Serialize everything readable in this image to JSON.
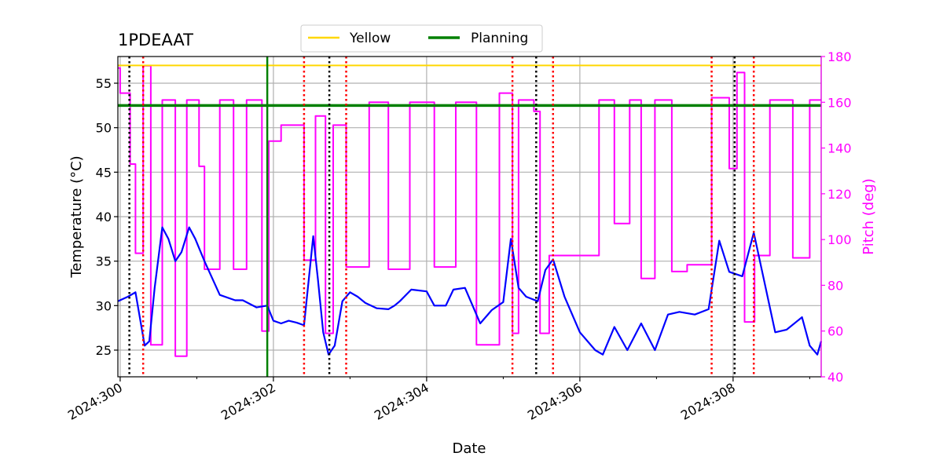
{
  "chart_data": {
    "type": "line",
    "title": "1PDEAAT",
    "xlabel": "Date",
    "ylabel": "Temperature ($^\\circ$C)",
    "ylabel_display": "Temperature (°C)",
    "y2label": "Pitch (deg)",
    "xlim": [
      299.97,
      309.15
    ],
    "ylim": [
      22,
      58
    ],
    "y2lim": [
      40,
      180
    ],
    "x_ticks": [
      {
        "value": 300,
        "label": "2024:300"
      },
      {
        "value": 302,
        "label": "2024:302"
      },
      {
        "value": 304,
        "label": "2024:304"
      },
      {
        "value": 306,
        "label": "2024:306"
      },
      {
        "value": 308,
        "label": "2024:308"
      }
    ],
    "x_minor_ticks": [
      301,
      303,
      305,
      307,
      309
    ],
    "y_ticks": [
      25,
      30,
      35,
      40,
      45,
      50,
      55
    ],
    "y2_ticks": [
      40,
      60,
      80,
      100,
      120,
      140,
      160,
      180
    ],
    "grid": true,
    "legend_position": "top-center",
    "colors": {
      "temperature": "#0000ff",
      "pitch": "#ff00ff",
      "yellow": "#ffd700",
      "planning": "#008000",
      "red_marker": "#ff0000",
      "black_marker": "#000000",
      "grid": "#b0b0b0"
    },
    "legend": [
      {
        "label": "Yellow",
        "color": "#ffd700"
      },
      {
        "label": "Planning",
        "color": "#008000"
      }
    ],
    "hlines": [
      {
        "name": "Yellow",
        "value": 57
      },
      {
        "name": "Planning",
        "value": 52.5
      }
    ],
    "vline_planning": 301.92,
    "red_dotted_lines": [
      300.3,
      302.4,
      302.95,
      305.12,
      305.65,
      307.72,
      308.27
    ],
    "black_dotted_lines": [
      300.12,
      302.73,
      305.43,
      308.02
    ],
    "series": [
      {
        "name": "Temperature",
        "axis": "left",
        "x": [
          299.97,
          300.1,
          300.2,
          300.25,
          300.32,
          300.38,
          300.45,
          300.55,
          300.63,
          300.72,
          300.8,
          300.9,
          300.98,
          301.1,
          301.3,
          301.5,
          301.6,
          301.78,
          301.92,
          302.0,
          302.1,
          302.2,
          302.3,
          302.4,
          302.52,
          302.58,
          302.65,
          302.72,
          302.8,
          302.9,
          303.0,
          303.1,
          303.2,
          303.35,
          303.5,
          303.58,
          303.65,
          303.8,
          304.0,
          304.1,
          304.25,
          304.35,
          304.5,
          304.6,
          304.7,
          304.85,
          305.0,
          305.1,
          305.2,
          305.3,
          305.45,
          305.55,
          305.65,
          305.8,
          306.0,
          306.2,
          306.3,
          306.45,
          306.62,
          306.8,
          306.98,
          307.15,
          307.3,
          307.5,
          307.68,
          307.82,
          307.95,
          308.12,
          308.27,
          308.4,
          308.55,
          308.7,
          308.9,
          309.0,
          309.1,
          309.15
        ],
        "y": [
          30.5,
          31.0,
          31.5,
          29.0,
          25.5,
          26.0,
          32.0,
          38.8,
          37.5,
          35.0,
          36.0,
          38.8,
          37.5,
          35.0,
          31.2,
          30.6,
          30.6,
          29.8,
          30.0,
          28.3,
          28.0,
          28.3,
          28.1,
          27.8,
          37.8,
          33.0,
          27.0,
          24.5,
          25.5,
          30.5,
          31.5,
          31.0,
          30.3,
          29.7,
          29.6,
          30.0,
          30.5,
          31.8,
          31.6,
          30.0,
          30.0,
          31.8,
          32.0,
          30.0,
          28.0,
          29.5,
          30.4,
          37.5,
          32.0,
          31.0,
          30.5,
          34.0,
          35.2,
          31.0,
          27.0,
          25.0,
          24.5,
          27.6,
          25.0,
          28.0,
          25.0,
          29.0,
          29.3,
          29.0,
          29.6,
          37.3,
          33.8,
          33.3,
          38.2,
          33.0,
          27.0,
          27.3,
          28.7,
          25.5,
          24.5,
          26.0
        ]
      },
      {
        "name": "Pitch",
        "axis": "right",
        "x": [
          299.97,
          300.0,
          300.0,
          300.13,
          300.13,
          300.2,
          300.2,
          300.3,
          300.3,
          300.4,
          300.4,
          300.55,
          300.55,
          300.72,
          300.72,
          300.87,
          300.87,
          301.03,
          301.03,
          301.1,
          301.1,
          301.3,
          301.3,
          301.48,
          301.48,
          301.65,
          301.65,
          301.85,
          301.85,
          301.94,
          301.94,
          302.1,
          302.1,
          302.4,
          302.4,
          302.55,
          302.55,
          302.68,
          302.68,
          302.78,
          302.78,
          302.95,
          302.95,
          303.25,
          303.25,
          303.5,
          303.5,
          303.78,
          303.78,
          304.1,
          304.1,
          304.38,
          304.38,
          304.65,
          304.65,
          304.95,
          304.95,
          305.12,
          305.12,
          305.2,
          305.2,
          305.4,
          305.4,
          305.48,
          305.48,
          305.6,
          305.6,
          306.25,
          306.25,
          306.45,
          306.45,
          306.65,
          306.65,
          306.8,
          306.8,
          306.98,
          306.98,
          307.2,
          307.2,
          307.4,
          307.4,
          307.72,
          307.72,
          307.95,
          307.95,
          308.05,
          308.05,
          308.15,
          308.15,
          308.28,
          308.28,
          308.48,
          308.48,
          308.78,
          308.78,
          309.0,
          309.0,
          309.15
        ],
        "y": [
          175,
          175,
          164,
          164,
          133,
          133,
          94,
          94,
          176,
          176,
          54,
          54,
          161,
          161,
          49,
          49,
          161,
          161,
          132,
          132,
          87,
          87,
          161,
          161,
          87,
          87,
          161,
          161,
          60,
          60,
          143,
          143,
          150,
          150,
          91,
          91,
          154,
          154,
          59,
          59,
          150,
          150,
          88,
          88,
          160,
          160,
          87,
          87,
          160,
          160,
          88,
          88,
          160,
          160,
          54,
          54,
          164,
          164,
          59,
          59,
          161,
          161,
          156,
          156,
          59,
          59,
          93,
          93,
          161,
          161,
          107,
          107,
          161,
          161,
          83,
          83,
          161,
          161,
          86,
          86,
          89,
          89,
          162,
          162,
          131,
          131,
          173,
          173,
          64,
          64,
          93,
          93,
          161,
          161,
          92,
          92,
          161,
          161
        ]
      }
    ]
  }
}
